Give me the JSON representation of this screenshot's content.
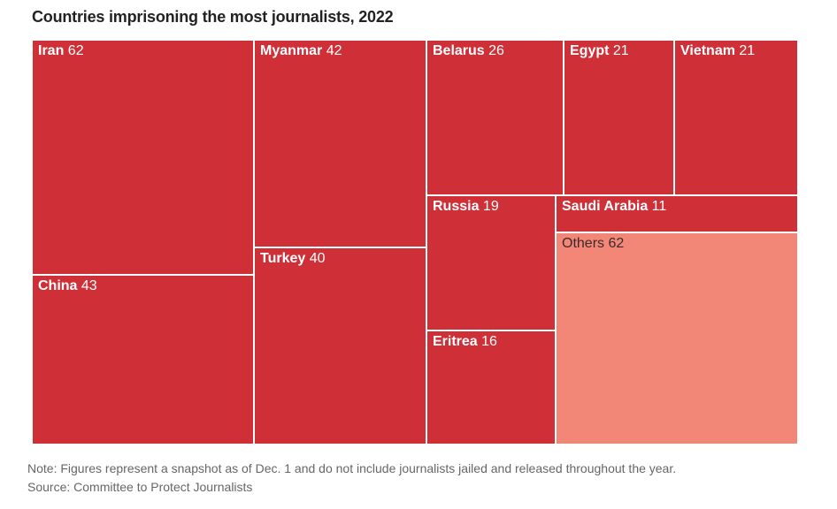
{
  "title": "Countries imprisoning the most journalists, 2022",
  "note": "Note: Figures represent a snapshot as of Dec. 1 and do not include journalists jailed and released throughout the year.",
  "source": "Source: Committee to Protect Journalists",
  "colors": {
    "main": "#cf3038",
    "others": "#f38777",
    "label_light": "#ffffff",
    "label_dark": "#3a2a2a"
  },
  "chart_data": {
    "type": "treemap",
    "title": "Countries imprisoning the most journalists, 2022",
    "items": [
      {
        "name": "Iran",
        "value": 62
      },
      {
        "name": "China",
        "value": 43
      },
      {
        "name": "Myanmar",
        "value": 42
      },
      {
        "name": "Turkey",
        "value": 40
      },
      {
        "name": "Belarus",
        "value": 26
      },
      {
        "name": "Egypt",
        "value": 21
      },
      {
        "name": "Vietnam",
        "value": 21
      },
      {
        "name": "Russia",
        "value": 19
      },
      {
        "name": "Eritrea",
        "value": 16
      },
      {
        "name": "Saudi Arabia",
        "value": 11
      },
      {
        "name": "Others",
        "value": 62
      }
    ]
  }
}
